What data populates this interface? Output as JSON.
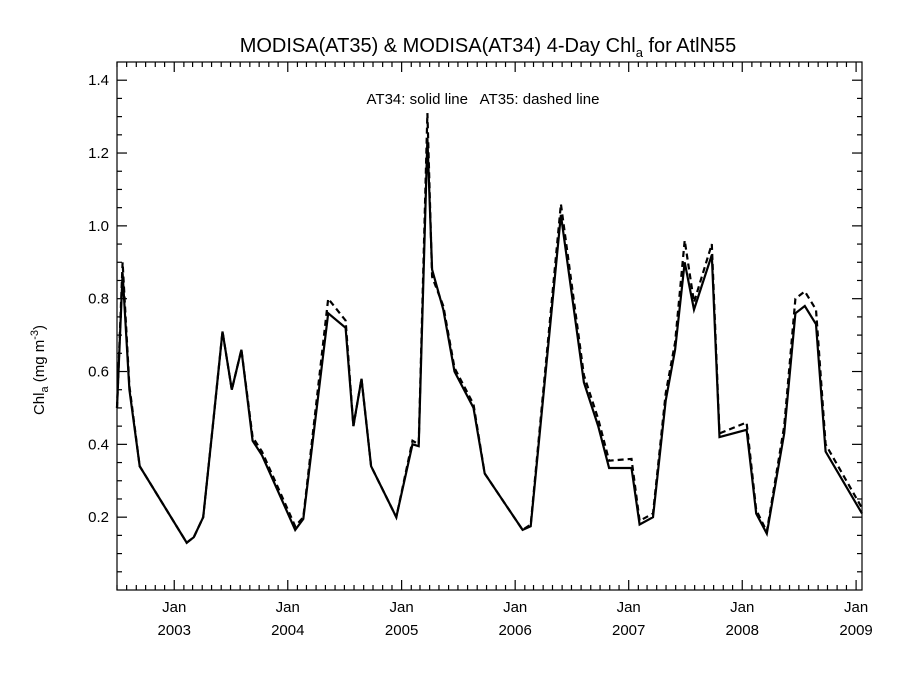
{
  "chart_data": {
    "type": "line",
    "title_main": "MODISA(AT35) & MODISA(AT34) 4-Day Chl",
    "title_sub": "a",
    "title_end": " for AtlN55",
    "ylabel_main": "Chl",
    "ylabel_sub": "a",
    "ylabel_units": " (mg m",
    "ylabel_sup": "-3",
    "ylabel_close": ")",
    "annotation": "AT34: solid line   AT35: dashed line",
    "xlim": [
      "2002-07-01",
      "2009-01-20"
    ],
    "ylim": [
      0.0,
      1.45
    ],
    "yticks": [
      0.2,
      0.4,
      0.6,
      0.8,
      1.0,
      1.2,
      1.4
    ],
    "ytick_labels": [
      "0.2",
      "0.4",
      "0.6",
      "0.8",
      "1.0",
      "1.2",
      "1.4"
    ],
    "xticks": [
      {
        "date": "2003-01-01",
        "month": "Jan",
        "year": "2003"
      },
      {
        "date": "2004-01-01",
        "month": "Jan",
        "year": "2004"
      },
      {
        "date": "2005-01-01",
        "month": "Jan",
        "year": "2005"
      },
      {
        "date": "2006-01-01",
        "month": "Jan",
        "year": "2006"
      },
      {
        "date": "2007-01-01",
        "month": "Jan",
        "year": "2007"
      },
      {
        "date": "2008-01-01",
        "month": "Jan",
        "year": "2008"
      },
      {
        "date": "2009-01-01",
        "month": "Jan",
        "year": "2009"
      }
    ],
    "series": [
      {
        "name": "AT34",
        "style": "solid",
        "x": [
          "2002-07-01",
          "2002-07-19",
          "2002-08-10",
          "2002-09-12",
          "2003-02-10",
          "2003-03-05",
          "2003-04-04",
          "2003-05-05",
          "2003-06-05",
          "2003-07-05",
          "2003-08-05",
          "2003-09-10",
          "2003-10-10",
          "2004-01-25",
          "2004-02-20",
          "2004-05-10",
          "2004-07-05",
          "2004-07-30",
          "2004-08-25",
          "2004-09-25",
          "2004-12-15",
          "2005-02-05",
          "2005-02-25",
          "2005-03-25",
          "2005-04-09",
          "2005-05-15",
          "2005-06-20",
          "2005-08-20",
          "2005-09-25",
          "2006-01-25",
          "2006-02-20",
          "2006-05-28",
          "2006-08-10",
          "2006-09-25",
          "2006-10-30",
          "2007-01-10",
          "2007-02-05",
          "2007-03-20",
          "2007-04-30",
          "2007-05-30",
          "2007-06-30",
          "2007-07-30",
          "2007-09-25",
          "2007-10-20",
          "2008-01-15",
          "2008-02-15",
          "2008-03-20",
          "2008-05-15",
          "2008-06-20",
          "2008-07-20",
          "2008-08-25",
          "2008-09-25",
          "2009-01-20"
        ],
        "values": [
          0.5,
          0.87,
          0.55,
          0.34,
          0.13,
          0.145,
          0.2,
          0.45,
          0.71,
          0.55,
          0.66,
          0.41,
          0.37,
          0.165,
          0.195,
          0.76,
          0.72,
          0.45,
          0.58,
          0.34,
          0.2,
          0.4,
          0.395,
          1.24,
          0.88,
          0.77,
          0.6,
          0.5,
          0.32,
          0.165,
          0.175,
          1.03,
          0.57,
          0.45,
          0.335,
          0.335,
          0.18,
          0.2,
          0.52,
          0.66,
          0.9,
          0.77,
          0.92,
          0.42,
          0.44,
          0.21,
          0.155,
          0.43,
          0.76,
          0.78,
          0.73,
          0.38,
          0.21
        ]
      },
      {
        "name": "AT35",
        "style": "dashed",
        "x": [
          "2002-07-01",
          "2002-07-19",
          "2002-08-10",
          "2002-09-12",
          "2003-02-10",
          "2003-03-05",
          "2003-04-04",
          "2003-05-05",
          "2003-06-05",
          "2003-07-05",
          "2003-08-05",
          "2003-09-10",
          "2003-10-10",
          "2004-01-25",
          "2004-02-20",
          "2004-05-10",
          "2004-07-05",
          "2004-07-30",
          "2004-08-25",
          "2004-09-25",
          "2004-12-15",
          "2005-02-05",
          "2005-02-25",
          "2005-03-25",
          "2005-04-09",
          "2005-05-15",
          "2005-06-20",
          "2005-08-20",
          "2005-09-25",
          "2006-01-25",
          "2006-02-20",
          "2006-05-28",
          "2006-08-10",
          "2006-09-25",
          "2006-10-30",
          "2007-01-10",
          "2007-02-05",
          "2007-03-20",
          "2007-04-30",
          "2007-05-30",
          "2007-06-30",
          "2007-07-30",
          "2007-09-25",
          "2007-10-20",
          "2008-01-15",
          "2008-02-15",
          "2008-03-20",
          "2008-05-15",
          "2008-06-20",
          "2008-07-20",
          "2008-08-25",
          "2008-09-25",
          "2009-01-20"
        ],
        "values": [
          0.5,
          0.9,
          0.56,
          0.34,
          0.13,
          0.145,
          0.2,
          0.45,
          0.71,
          0.55,
          0.66,
          0.42,
          0.38,
          0.175,
          0.2,
          0.8,
          0.74,
          0.45,
          0.58,
          0.34,
          0.2,
          0.41,
          0.4,
          1.31,
          0.86,
          0.78,
          0.61,
          0.51,
          0.32,
          0.165,
          0.18,
          1.06,
          0.59,
          0.47,
          0.355,
          0.36,
          0.19,
          0.21,
          0.54,
          0.68,
          0.96,
          0.79,
          0.95,
          0.43,
          0.46,
          0.22,
          0.16,
          0.45,
          0.8,
          0.82,
          0.77,
          0.4,
          0.225
        ]
      }
    ]
  }
}
